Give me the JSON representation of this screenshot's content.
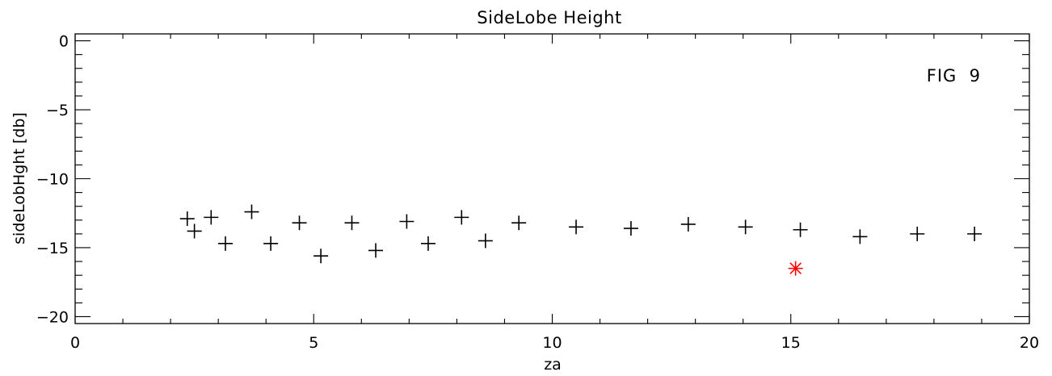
{
  "chart_data": {
    "type": "scatter",
    "title": "SideLobe Height",
    "xlabel": "za",
    "ylabel": "sideLobHght [db]",
    "annotation": "FIG  9",
    "xlim": [
      0,
      20
    ],
    "ylim": [
      -20.5,
      0.5
    ],
    "x_ticks": [
      0,
      5,
      10,
      15,
      20
    ],
    "y_ticks": [
      0,
      -5,
      -10,
      -15,
      -20
    ],
    "x_minor_step": 1,
    "y_minor_step": 1,
    "grid": false,
    "series": [
      {
        "marker": "plus",
        "color": "#000000",
        "points": [
          [
            2.35,
            -12.9
          ],
          [
            2.5,
            -13.8
          ],
          [
            2.85,
            -12.8
          ],
          [
            3.15,
            -14.7
          ],
          [
            3.7,
            -12.4
          ],
          [
            4.1,
            -14.7
          ],
          [
            4.7,
            -13.2
          ],
          [
            5.15,
            -15.6
          ],
          [
            5.8,
            -13.2
          ],
          [
            6.3,
            -15.2
          ],
          [
            6.95,
            -13.1
          ],
          [
            7.4,
            -14.7
          ],
          [
            8.1,
            -12.8
          ],
          [
            8.6,
            -14.5
          ],
          [
            9.3,
            -13.2
          ],
          [
            10.5,
            -13.5
          ],
          [
            11.65,
            -13.6
          ],
          [
            12.85,
            -13.3
          ],
          [
            14.05,
            -13.5
          ],
          [
            15.2,
            -13.7
          ],
          [
            16.45,
            -14.2
          ],
          [
            17.65,
            -14.0
          ],
          [
            18.85,
            -14.0
          ]
        ]
      },
      {
        "marker": "asterisk",
        "color": "#ff0000",
        "points": [
          [
            15.1,
            -16.5
          ]
        ]
      }
    ]
  }
}
